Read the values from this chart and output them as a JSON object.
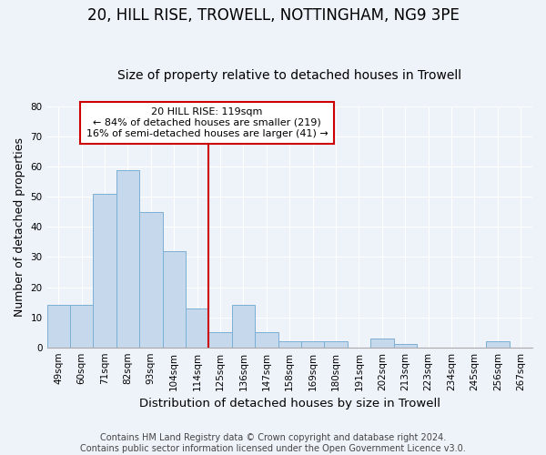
{
  "title": "20, HILL RISE, TROWELL, NOTTINGHAM, NG9 3PE",
  "subtitle": "Size of property relative to detached houses in Trowell",
  "xlabel": "Distribution of detached houses by size in Trowell",
  "ylabel": "Number of detached properties",
  "categories": [
    "49sqm",
    "60sqm",
    "71sqm",
    "82sqm",
    "93sqm",
    "104sqm",
    "114sqm",
    "125sqm",
    "136sqm",
    "147sqm",
    "158sqm",
    "169sqm",
    "180sqm",
    "191sqm",
    "202sqm",
    "213sqm",
    "223sqm",
    "234sqm",
    "245sqm",
    "256sqm",
    "267sqm"
  ],
  "values": [
    14,
    14,
    51,
    59,
    45,
    32,
    13,
    5,
    14,
    5,
    2,
    2,
    2,
    0,
    3,
    1,
    0,
    0,
    0,
    2,
    0
  ],
  "bar_color": "#c6d9ec",
  "bar_edge_color": "#7bafd4",
  "highlight_line_color": "#cc0000",
  "ylim": [
    0,
    80
  ],
  "yticks": [
    0,
    10,
    20,
    30,
    40,
    50,
    60,
    70,
    80
  ],
  "annotation_title": "20 HILL RISE: 119sqm",
  "annotation_line1": "← 84% of detached houses are smaller (219)",
  "annotation_line2": "16% of semi-detached houses are larger (41) →",
  "annotation_box_color": "#ffffff",
  "annotation_box_edge_color": "#cc0000",
  "footer_line1": "Contains HM Land Registry data © Crown copyright and database right 2024.",
  "footer_line2": "Contains public sector information licensed under the Open Government Licence v3.0.",
  "background_color": "#eef2f9",
  "grid_color": "#ffffff",
  "title_fontsize": 12,
  "subtitle_fontsize": 10,
  "xlabel_fontsize": 9.5,
  "ylabel_fontsize": 9,
  "tick_fontsize": 7.5,
  "footer_fontsize": 7,
  "highlight_bar_index": 6
}
